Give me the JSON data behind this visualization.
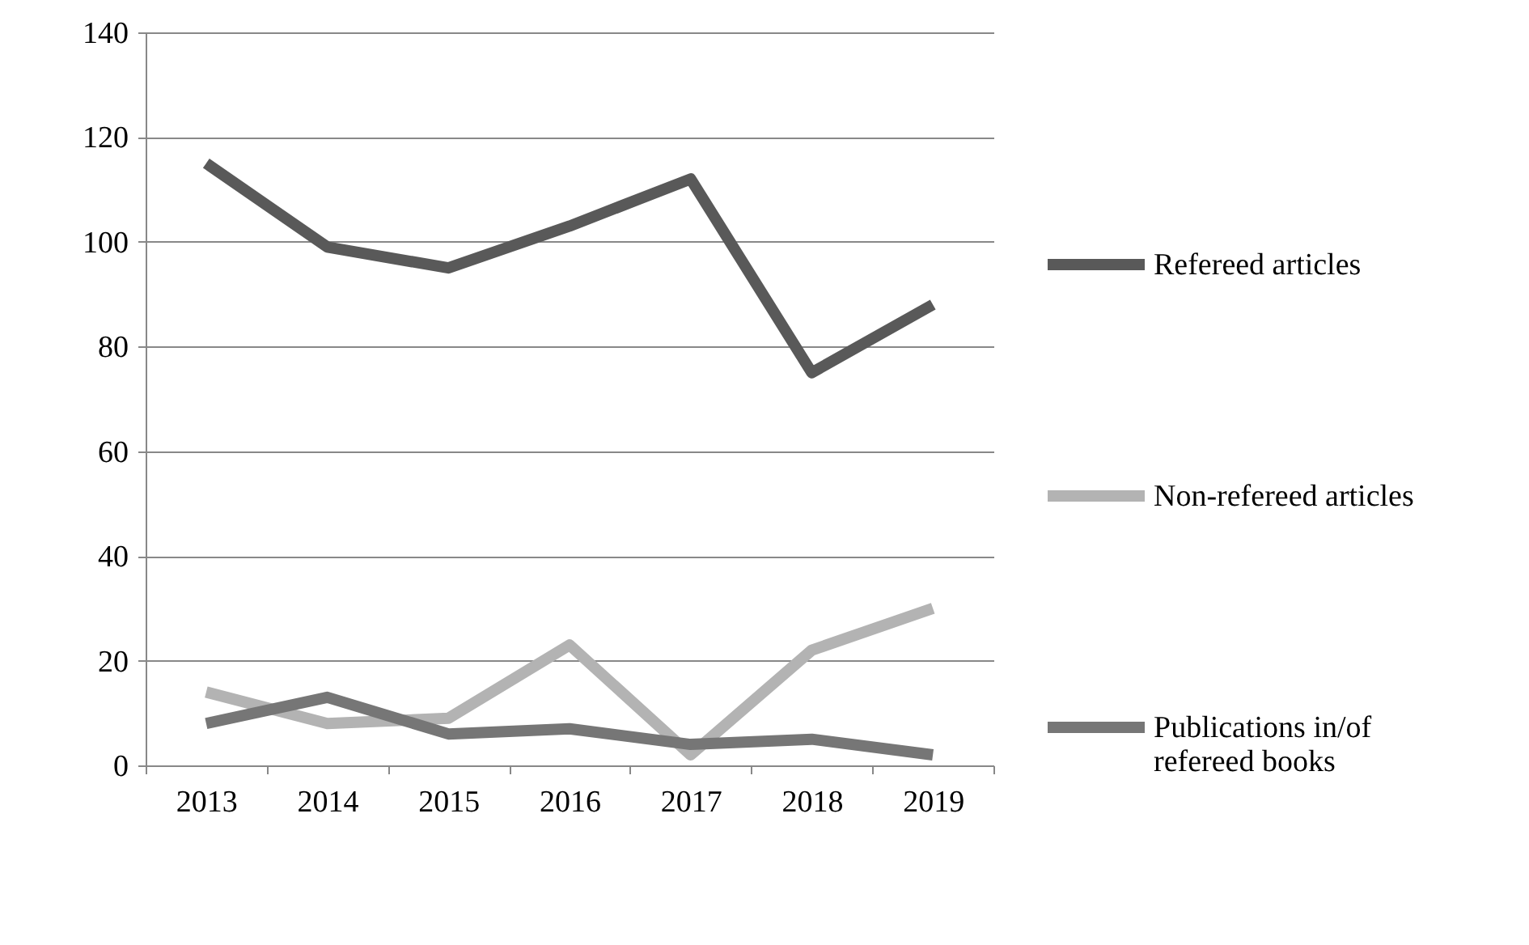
{
  "chart_data": {
    "type": "line",
    "categories": [
      "2013",
      "2014",
      "2015",
      "2016",
      "2017",
      "2018",
      "2019"
    ],
    "series": [
      {
        "name": "Refereed articles",
        "color": "#595959",
        "values": [
          115,
          99,
          95,
          103,
          112,
          75,
          88
        ]
      },
      {
        "name": "Non-refereed articles",
        "color": "#b3b3b3",
        "values": [
          14,
          8,
          9,
          23,
          2,
          22,
          30
        ]
      },
      {
        "name": "Publications in/of refereed books",
        "color": "#767676",
        "values": [
          8,
          13,
          6,
          7,
          4,
          5,
          2
        ]
      }
    ],
    "ylim": [
      0,
      140
    ],
    "yticks": [
      0,
      20,
      40,
      60,
      80,
      100,
      120,
      140
    ],
    "grid": "y",
    "legend": "right",
    "marker": "none",
    "line_style": "solid"
  }
}
